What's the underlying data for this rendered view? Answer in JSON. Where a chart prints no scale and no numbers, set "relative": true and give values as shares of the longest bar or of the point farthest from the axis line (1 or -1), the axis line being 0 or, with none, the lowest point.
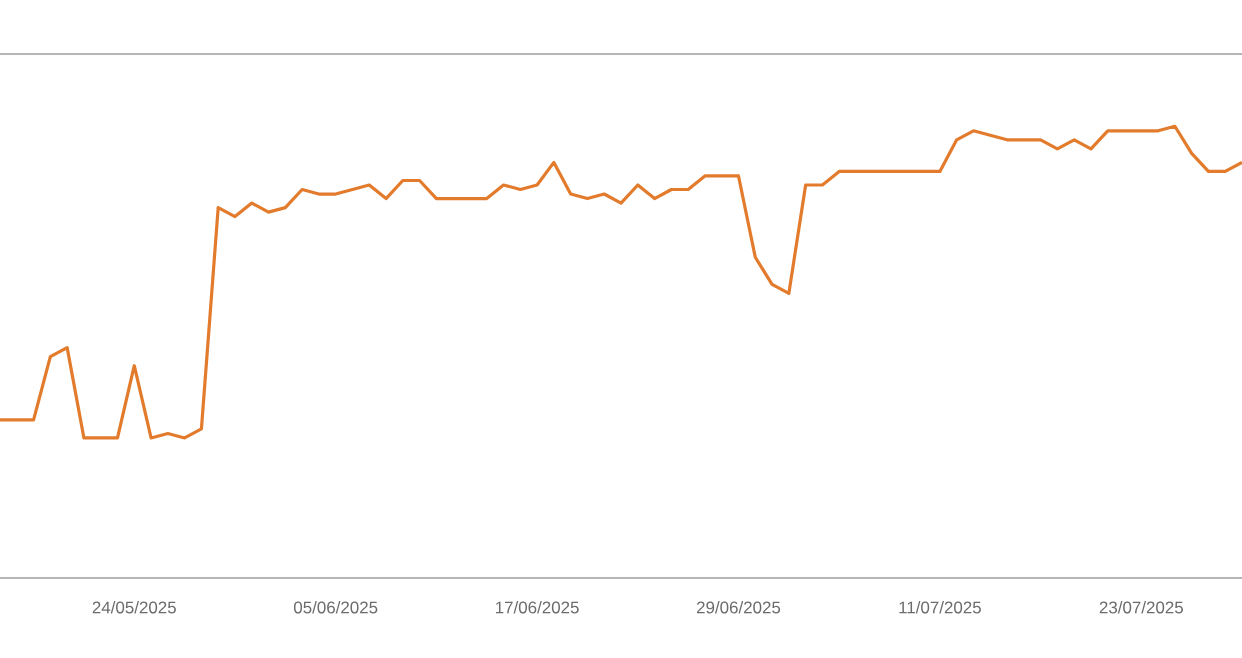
{
  "chart_data": {
    "type": "line",
    "relative": true,
    "marker": "none",
    "line_style": "solid",
    "xlim": [
      "2025-05-16",
      "2025-07-29"
    ],
    "xticks": [
      {
        "value": "2025-05-24",
        "label": "24/05/2025"
      },
      {
        "value": "2025-06-05",
        "label": "05/06/2025"
      },
      {
        "value": "2025-06-17",
        "label": "17/06/2025"
      },
      {
        "value": "2025-06-29",
        "label": "29/06/2025"
      },
      {
        "value": "2025-07-11",
        "label": "11/07/2025"
      },
      {
        "value": "2025-07-23",
        "label": "23/07/2025"
      }
    ],
    "series": [
      {
        "color": "#e37b2d",
        "x": [
          "2025-05-16",
          "2025-05-17",
          "2025-05-18",
          "2025-05-19",
          "2025-05-20",
          "2025-05-21",
          "2025-05-22",
          "2025-05-23",
          "2025-05-24",
          "2025-05-25",
          "2025-05-26",
          "2025-05-27",
          "2025-05-28",
          "2025-05-29",
          "2025-05-30",
          "2025-05-31",
          "2025-06-01",
          "2025-06-02",
          "2025-06-03",
          "2025-06-04",
          "2025-06-05",
          "2025-06-06",
          "2025-06-07",
          "2025-06-08",
          "2025-06-09",
          "2025-06-10",
          "2025-06-11",
          "2025-06-12",
          "2025-06-13",
          "2025-06-14",
          "2025-06-15",
          "2025-06-16",
          "2025-06-17",
          "2025-06-18",
          "2025-06-19",
          "2025-06-20",
          "2025-06-21",
          "2025-06-22",
          "2025-06-23",
          "2025-06-24",
          "2025-06-25",
          "2025-06-26",
          "2025-06-27",
          "2025-06-28",
          "2025-06-29",
          "2025-06-30",
          "2025-07-01",
          "2025-07-02",
          "2025-07-03",
          "2025-07-04",
          "2025-07-05",
          "2025-07-06",
          "2025-07-07",
          "2025-07-08",
          "2025-07-09",
          "2025-07-10",
          "2025-07-11",
          "2025-07-12",
          "2025-07-13",
          "2025-07-14",
          "2025-07-15",
          "2025-07-16",
          "2025-07-17",
          "2025-07-18",
          "2025-07-19",
          "2025-07-20",
          "2025-07-21",
          "2025-07-22",
          "2025-07-23",
          "2025-07-24",
          "2025-07-25",
          "2025-07-26",
          "2025-07-27",
          "2025-07-28",
          "2025-07-29"
        ],
        "values": [
          0.35,
          0.35,
          0.35,
          0.49,
          0.51,
          0.31,
          0.31,
          0.31,
          0.47,
          0.31,
          0.32,
          0.31,
          0.33,
          0.82,
          0.8,
          0.83,
          0.81,
          0.82,
          0.86,
          0.85,
          0.85,
          0.86,
          0.87,
          0.84,
          0.88,
          0.88,
          0.84,
          0.84,
          0.84,
          0.84,
          0.87,
          0.86,
          0.87,
          0.92,
          0.85,
          0.84,
          0.85,
          0.83,
          0.87,
          0.84,
          0.86,
          0.86,
          0.89,
          0.89,
          0.89,
          0.71,
          0.65,
          0.63,
          0.87,
          0.87,
          0.9,
          0.9,
          0.9,
          0.9,
          0.9,
          0.9,
          0.9,
          0.97,
          0.99,
          0.98,
          0.97,
          0.97,
          0.97,
          0.95,
          0.97,
          0.95,
          0.99,
          0.99,
          0.99,
          0.99,
          1,
          0.94,
          0.9,
          0.9,
          0.92
        ]
      }
    ]
  }
}
